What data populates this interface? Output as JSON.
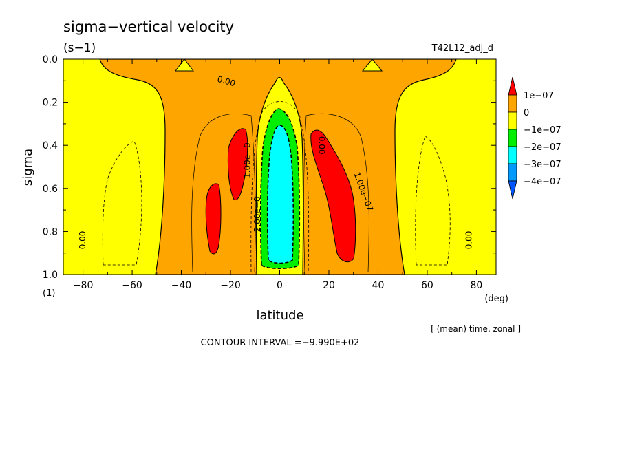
{
  "header": {
    "title": "sigma−vertical velocity",
    "units": "(s−1)",
    "run": "T42L12_adj_d"
  },
  "footer": {
    "contour_interval": "CONTOUR INTERVAL =−9.990E+02",
    "averaging": "[ (mean) time, zonal ]"
  },
  "chart_data": {
    "type": "contour",
    "xlabel": "latitude",
    "xunit": "(deg)",
    "ylabel": "sigma",
    "yunit": "(1)",
    "xlim": [
      -88,
      88
    ],
    "ylim": [
      1.0,
      0.0
    ],
    "y_inverted": true,
    "grid": false,
    "x_ticks": [
      -80,
      -60,
      -40,
      -20,
      0,
      20,
      40,
      60,
      80
    ],
    "x_tick_labels": [
      "−80",
      "−60",
      "−40",
      "−20",
      "0",
      "20",
      "40",
      "60",
      "80"
    ],
    "y_ticks": [
      0.0,
      0.2,
      0.4,
      0.6,
      0.8,
      1.0
    ],
    "y_tick_labels": [
      "0.0",
      "0.2",
      "0.4",
      "0.6",
      "0.8",
      "1.0"
    ],
    "legend": {
      "placement": "right",
      "levels": [
        "1e−07",
        "0",
        "−1e−07",
        "−2e−07",
        "−3e−07",
        "−4e−07"
      ],
      "colors": [
        "#ff0000",
        "#ffa500",
        "#ffff00",
        "#00ee00",
        "#00ffff",
        "#0099ff",
        "#0055ff"
      ]
    },
    "contour_labels": [
      {
        "text": "0.00",
        "lat": -22,
        "sigma": 0.115,
        "rotate": 15
      },
      {
        "text": "0.00",
        "lat": -79,
        "sigma": 0.84,
        "rotate": -90
      },
      {
        "text": "0.00",
        "lat": 78,
        "sigma": 0.84,
        "rotate": -90
      },
      {
        "text": "0.00",
        "lat": 16,
        "sigma": 0.4,
        "rotate": 90
      },
      {
        "text": "1.00e−0",
        "lat": -12,
        "sigma": 0.47,
        "rotate": -90
      },
      {
        "text": "2.00e−0",
        "lat": -8,
        "sigma": 0.72,
        "rotate": -90
      },
      {
        "text": "1.00e−07",
        "lat": 33,
        "sigma": 0.62,
        "rotate": 70
      }
    ],
    "regions": [
      {
        "level": "0 to 1e−07",
        "color": "#ffa500",
        "lat_range": [
          -50,
          50
        ],
        "sigma_range": [
          0.0,
          1.0
        ]
      },
      {
        "level": "> 1e−07",
        "color": "#ff0000",
        "centers": [
          [
            -20,
            0.48
          ],
          [
            -27,
            0.75
          ],
          [
            22,
            0.6
          ]
        ]
      },
      {
        "level": "−2e−07 to −1e−07",
        "color": "#00ee00",
        "lat_range": [
          -10,
          10
        ],
        "sigma_range": [
          0.23,
          0.99
        ]
      },
      {
        "level": "−3e−07 to −2e−07",
        "color": "#00ffff",
        "lat_range": [
          -6,
          7
        ],
        "sigma_range": [
          0.3,
          0.93
        ]
      }
    ]
  }
}
